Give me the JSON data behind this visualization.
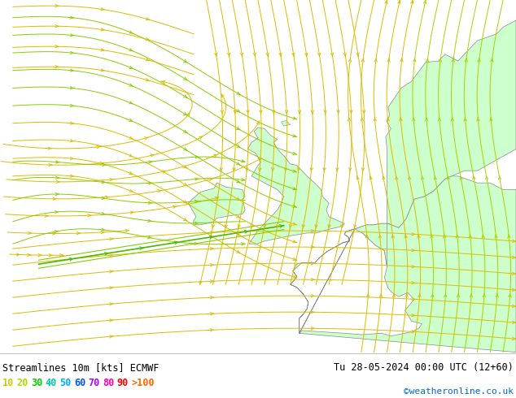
{
  "title_left": "Streamlines 10m [kts] ECMWF",
  "title_right": "Tu 28-05-2024 00:00 UTC (12+60)",
  "credit": "©weatheronline.co.uk",
  "legend_labels": [
    "10",
    "20",
    "30",
    "40",
    "50",
    "60",
    "70",
    "80",
    "90",
    ">100"
  ],
  "legend_colors": [
    "#cccc00",
    "#aadd00",
    "#00cc00",
    "#00ccaa",
    "#00aaff",
    "#0055ff",
    "#aa00ff",
    "#ff00aa",
    "#ff0000",
    "#ff6600"
  ],
  "fig_width": 6.34,
  "fig_height": 4.9,
  "dpi": 100,
  "bg_ocean": "#e0e0e0",
  "bg_land": "#ccffcc",
  "coastline_color": "#888888",
  "color_yellow": "#ddbb00",
  "color_green": "#88cc00",
  "color_lime": "#aad400",
  "color_dark_green": "#44bb00",
  "map_lon_min": -25,
  "map_lon_max": 15,
  "map_lat_min": 42,
  "map_lat_max": 68
}
